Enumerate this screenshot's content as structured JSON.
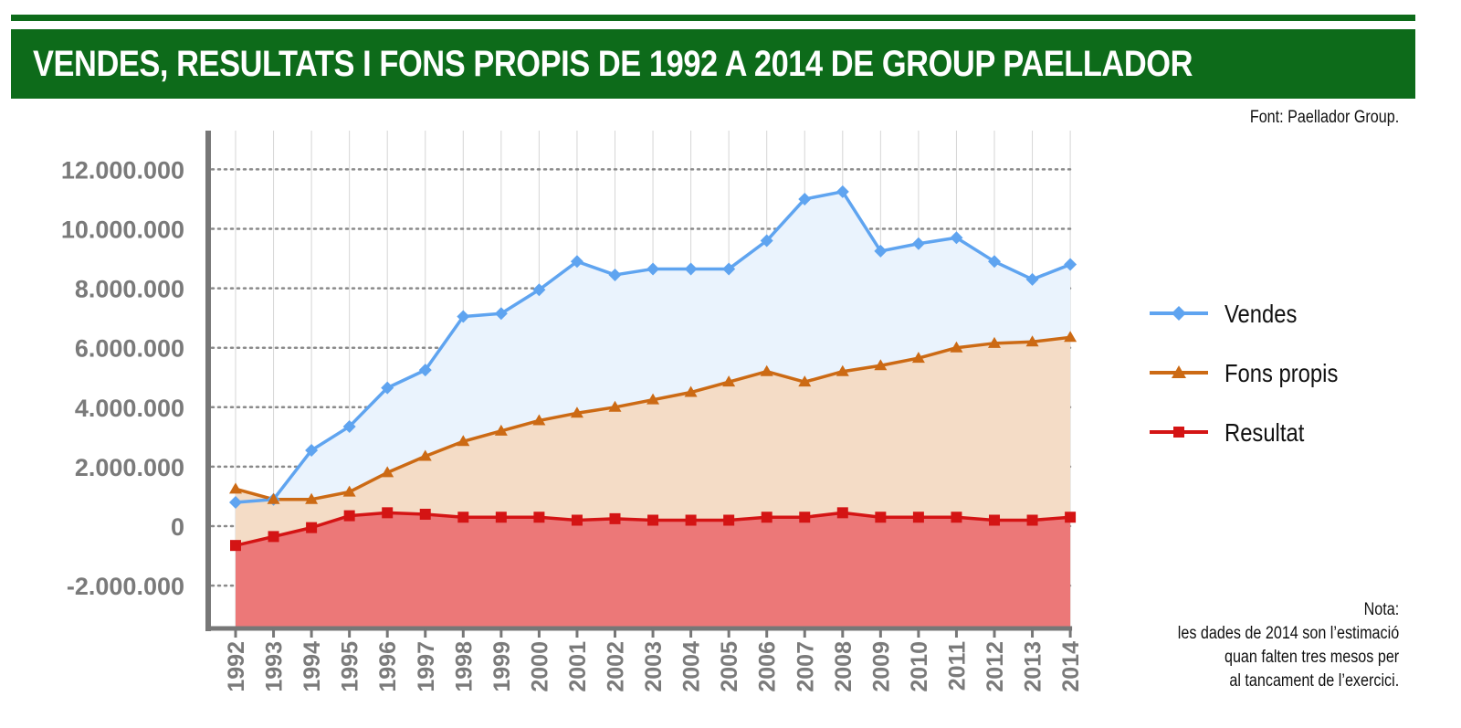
{
  "header": {
    "title": "VENDES, RESULTATS I FONS PROPIS DE 1992 A 2014 DE GROUP PAELLADOR"
  },
  "source": "Font: Paellador Group.",
  "note": {
    "title": "Nota:",
    "lines": [
      "les dades de 2014 son l’estimació",
      "quan falten tres mesos per",
      "al tancament de l’exercici."
    ]
  },
  "legend": {
    "vendes": "Vendes",
    "fons_propis": "Fons propis",
    "resultat": "Resultat"
  },
  "colors": {
    "title_band": "#0d6b1a",
    "vendes_line": "#5fa4f0",
    "vendes_fill": "#eaf3fd",
    "fons_line": "#cc6a14",
    "fons_fill": "#f4dcc6",
    "resultat_line": "#d41414",
    "resultat_fill": "#ec7878",
    "axis": "#777777",
    "tick_text": "#7a7a7a"
  },
  "chart_data": {
    "type": "line",
    "x": [
      "1992",
      "1993",
      "1994",
      "1995",
      "1996",
      "1997",
      "1998",
      "1999",
      "2000",
      "2001",
      "2002",
      "2003",
      "2004",
      "2005",
      "2006",
      "2007",
      "2008",
      "2009",
      "2010",
      "2011",
      "2012",
      "2013",
      "2014"
    ],
    "yticks": [
      -2000000,
      0,
      2000000,
      4000000,
      6000000,
      8000000,
      10000000,
      12000000
    ],
    "ytick_labels": [
      "-2.000.000",
      "0",
      "2.000.000",
      "4.000.000",
      "6.000.000",
      "8.000.000",
      "10.000.000",
      "12.000.000"
    ],
    "ylim": [
      -3400000,
      13300000
    ],
    "grid": "horizontal dotted",
    "legend_position": "right",
    "series": [
      {
        "name": "Vendes",
        "marker": "diamond",
        "values": [
          800000,
          900000,
          2550000,
          3350000,
          4650000,
          5250000,
          7050000,
          7150000,
          7950000,
          8900000,
          8450000,
          8650000,
          8650000,
          8650000,
          9600000,
          11000000,
          11250000,
          9250000,
          9500000,
          9700000,
          8900000,
          8300000,
          8800000
        ]
      },
      {
        "name": "Fons propis",
        "marker": "triangle",
        "values": [
          1250000,
          900000,
          900000,
          1150000,
          1800000,
          2350000,
          2850000,
          3200000,
          3550000,
          3800000,
          4000000,
          4250000,
          4500000,
          4850000,
          5200000,
          4850000,
          5200000,
          5400000,
          5650000,
          6000000,
          6150000,
          6200000,
          6350000
        ]
      },
      {
        "name": "Resultat",
        "marker": "square",
        "values": [
          -650000,
          -350000,
          -50000,
          350000,
          450000,
          400000,
          300000,
          300000,
          300000,
          200000,
          250000,
          200000,
          200000,
          200000,
          300000,
          300000,
          450000,
          300000,
          300000,
          300000,
          200000,
          200000,
          300000
        ]
      }
    ]
  }
}
